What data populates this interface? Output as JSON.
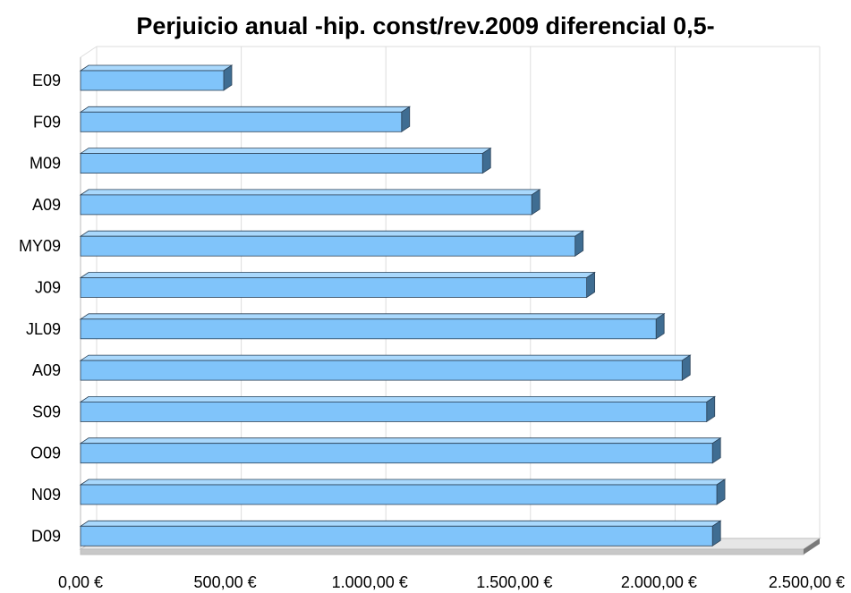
{
  "chart_data": {
    "type": "bar",
    "orientation": "horizontal",
    "title": "Perjuicio anual -hip. const/rev.2009  diferencial 0,5-",
    "xlabel": "",
    "ylabel": "",
    "categories": [
      "E09",
      "F09",
      "M09",
      "A09",
      "MY09",
      "J09",
      "JL09",
      "A09",
      "S09",
      "O09",
      "N09",
      "D09"
    ],
    "values": [
      495,
      1110,
      1390,
      1560,
      1710,
      1750,
      1990,
      2080,
      2165,
      2185,
      2200,
      2185
    ],
    "xlim": [
      0,
      2500
    ],
    "x_ticks": [
      0,
      500,
      1000,
      1500,
      2000,
      2500
    ],
    "x_tick_labels": [
      "0,00 €",
      "500,00 €",
      "1.000,00 €",
      "1.500,00 €",
      "2.000,00 €",
      "2.500,00 €"
    ],
    "grid": true,
    "legend": "none",
    "style": "3d",
    "colors": {
      "bar_front": "#80c4fa",
      "bar_top": "#a9d8fc",
      "bar_side": "#3f6d92",
      "bar_edge": "#2b4258",
      "grid": "#dddddd",
      "floor": "#c8c8c8"
    }
  }
}
